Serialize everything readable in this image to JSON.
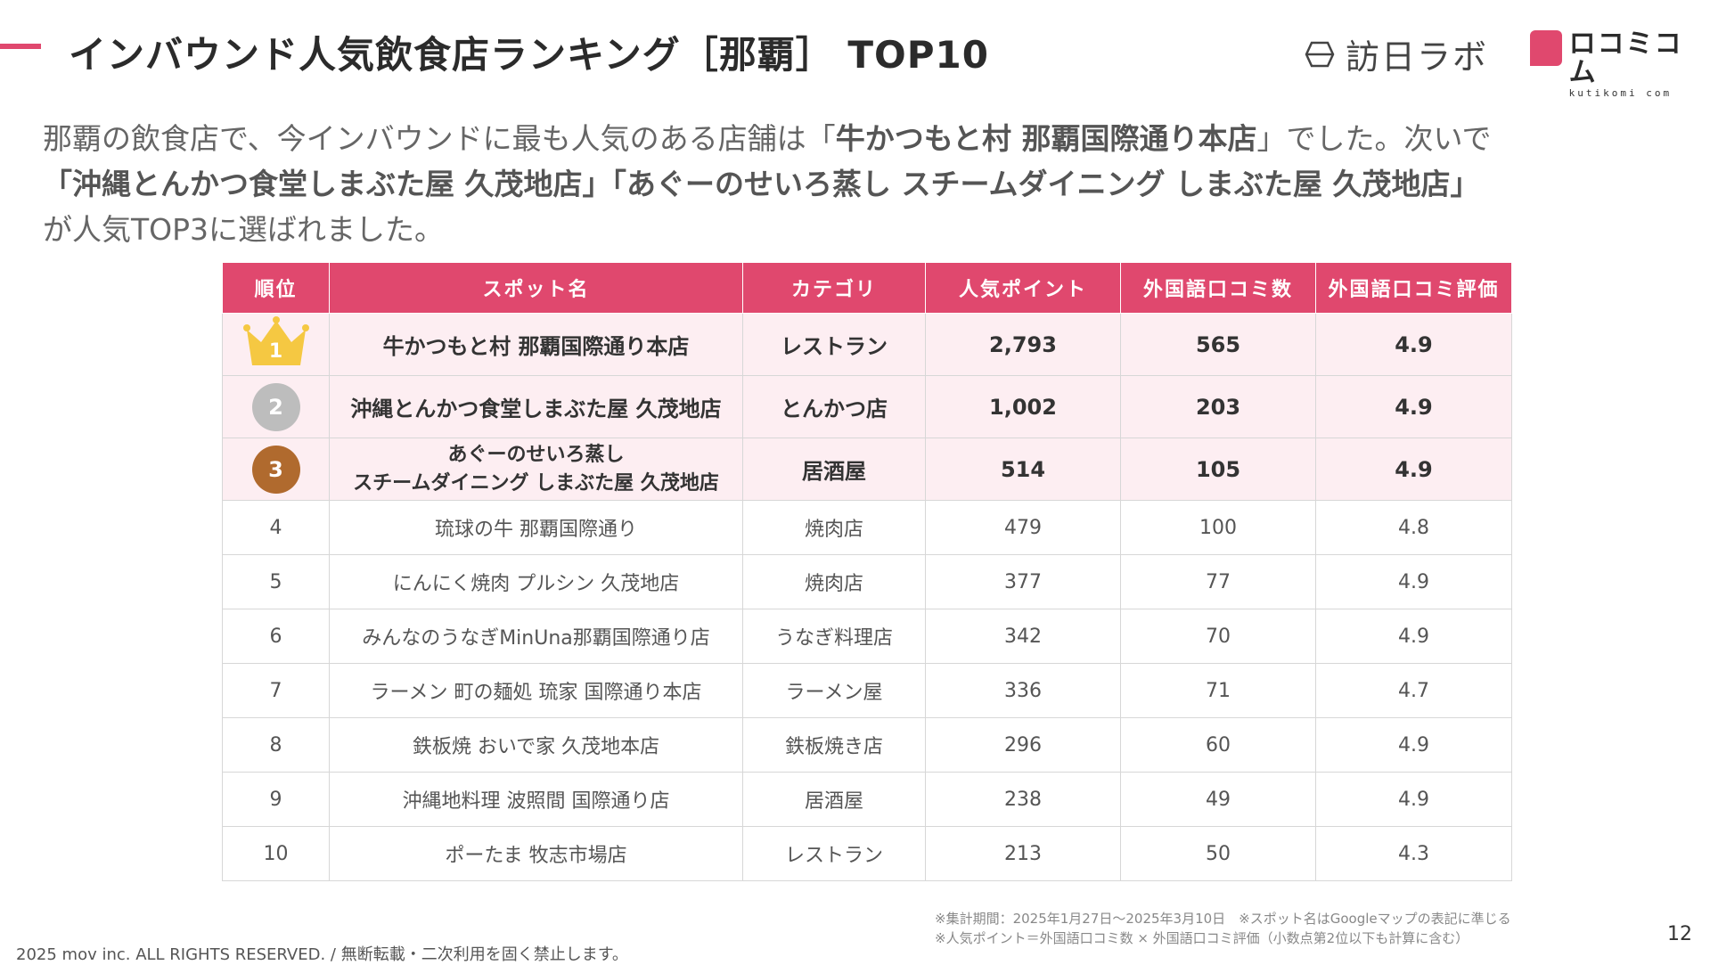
{
  "header": {
    "title": "インバウンド人気飲食店ランキング［那覇］ TOP10",
    "logo_left_text": "訪日ラボ",
    "logo_right_text": "ロコミコム",
    "logo_right_sub": "kutikomi com"
  },
  "intro": {
    "p1": "那覇の飲食店で、今インバウンドに最も人気のある店舗は「",
    "b1": "牛かつもと村 那覇国際通り本店",
    "p2": "」でした。次いで",
    "b2": "「沖縄とんかつ食堂しまぶた屋 久茂地店」「あぐーのせいろ蒸し スチームダイニング しまぶた屋 久茂地店」",
    "p3": "が人気TOP3に選ばれました。"
  },
  "table": {
    "headers": [
      "順位",
      "スポット名",
      "カテゴリ",
      "人気ポイント",
      "外国語口コミ数",
      "外国語口コミ評価"
    ],
    "rows": [
      {
        "rank": "1",
        "name": "牛かつもと村 那覇国際通り本店",
        "category": "レストラン",
        "points": "2,793",
        "reviews": "565",
        "rating": "4.9"
      },
      {
        "rank": "2",
        "name": "沖縄とんかつ食堂しまぶた屋 久茂地店",
        "category": "とんかつ店",
        "points": "1,002",
        "reviews": "203",
        "rating": "4.9"
      },
      {
        "rank": "3",
        "name_line1": "あぐーのせいろ蒸し",
        "name_line2": "スチームダイニング しまぶた屋 久茂地店",
        "category": "居酒屋",
        "points": "514",
        "reviews": "105",
        "rating": "4.9"
      },
      {
        "rank": "4",
        "name": "琉球の牛 那覇国際通り",
        "category": "焼肉店",
        "points": "479",
        "reviews": "100",
        "rating": "4.8"
      },
      {
        "rank": "5",
        "name": "にんにく焼肉 プルシン 久茂地店",
        "category": "焼肉店",
        "points": "377",
        "reviews": "77",
        "rating": "4.9"
      },
      {
        "rank": "6",
        "name": "みんなのうなぎMinUna那覇国際通り店",
        "category": "うなぎ料理店",
        "points": "342",
        "reviews": "70",
        "rating": "4.9"
      },
      {
        "rank": "7",
        "name": "ラーメン 町の麺処 琉家 国際通り本店",
        "category": "ラーメン屋",
        "points": "336",
        "reviews": "71",
        "rating": "4.7"
      },
      {
        "rank": "8",
        "name": "鉄板焼 おいで家 久茂地本店",
        "category": "鉄板焼き店",
        "points": "296",
        "reviews": "60",
        "rating": "4.9"
      },
      {
        "rank": "9",
        "name": "沖縄地料理 波照間 国際通り店",
        "category": "居酒屋",
        "points": "238",
        "reviews": "49",
        "rating": "4.9"
      },
      {
        "rank": "10",
        "name": "ポーたま 牧志市場店",
        "category": "レストラン",
        "points": "213",
        "reviews": "50",
        "rating": "4.3"
      }
    ]
  },
  "footer": {
    "note1": "※集計期間：2025年1月27日〜2025年3月10日　※スポット名はGoogleマップの表記に準じる",
    "note2": "※人気ポイント＝外国語口コミ数 × 外国語口コミ評価（小数点第2位以下も計算に含む）",
    "copyright": "2025 mov inc. ALL RIGHTS RESERVED. / 無断転載・二次利用を固く禁止します。",
    "page": "12"
  },
  "colors": {
    "accent": "#e0486e",
    "top3_row_bg": "#fdeef2",
    "crown": "#f5c842",
    "silver": "#bdbdbd",
    "bronze": "#b06a2e"
  }
}
